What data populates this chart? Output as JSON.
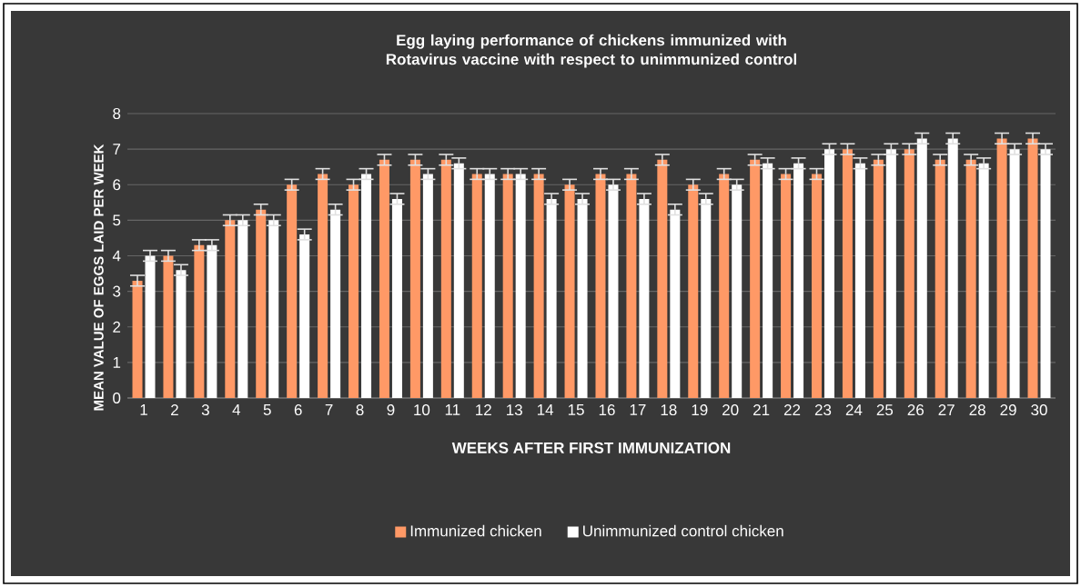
{
  "chart_data": {
    "type": "bar",
    "title": "Egg laying performance of chickens immunized with Rotavirus vaccine with respect to unimmunized control",
    "xlabel": "WEEKS AFTER FIRST IMMUNIZATION",
    "ylabel": "MEAN VALUE OF EGGS LAID PER WEEK",
    "categories": [
      "1",
      "2",
      "3",
      "4",
      "5",
      "6",
      "7",
      "8",
      "9",
      "10",
      "11",
      "12",
      "13",
      "14",
      "15",
      "16",
      "17",
      "18",
      "19",
      "20",
      "21",
      "22",
      "23",
      "24",
      "25",
      "26",
      "27",
      "28",
      "29",
      "30"
    ],
    "series": [
      {
        "name": "Immunized chicken",
        "color": "#ff9966",
        "values": [
          3.3,
          4,
          4.3,
          5,
          5.3,
          6,
          6.3,
          6,
          6.7,
          6.7,
          6.7,
          6.3,
          6.3,
          6.3,
          6,
          6.3,
          6.3,
          6.7,
          6,
          6.3,
          6.7,
          6.3,
          6.3,
          7,
          6.7,
          7,
          6.7,
          6.7,
          7.3,
          7.3
        ],
        "errors": [
          0.15,
          0.15,
          0.15,
          0.15,
          0.15,
          0.15,
          0.15,
          0.15,
          0.15,
          0.15,
          0.15,
          0.15,
          0.15,
          0.15,
          0.15,
          0.15,
          0.15,
          0.15,
          0.15,
          0.15,
          0.15,
          0.15,
          0.15,
          0.15,
          0.15,
          0.15,
          0.15,
          0.15,
          0.15,
          0.15
        ]
      },
      {
        "name": "Unimmunized control chicken",
        "color": "#ffffff",
        "values": [
          4,
          3.6,
          4.3,
          5,
          5,
          4.6,
          5.3,
          6.3,
          5.6,
          6.3,
          6.6,
          6.3,
          6.3,
          5.6,
          5.6,
          6,
          5.6,
          5.3,
          5.6,
          6,
          6.6,
          6.6,
          7,
          6.6,
          7,
          7.3,
          7.3,
          6.6,
          7,
          7
        ],
        "errors": [
          0.15,
          0.15,
          0.15,
          0.15,
          0.15,
          0.15,
          0.15,
          0.15,
          0.15,
          0.15,
          0.15,
          0.15,
          0.15,
          0.15,
          0.15,
          0.15,
          0.15,
          0.15,
          0.15,
          0.15,
          0.15,
          0.15,
          0.15,
          0.15,
          0.15,
          0.15,
          0.15,
          0.15,
          0.15,
          0.15
        ]
      }
    ],
    "ylim": [
      0,
      8
    ],
    "yticks": [
      0,
      1,
      2,
      3,
      4,
      5,
      6,
      7,
      8
    ],
    "grid": "y",
    "legend": "bottom"
  }
}
